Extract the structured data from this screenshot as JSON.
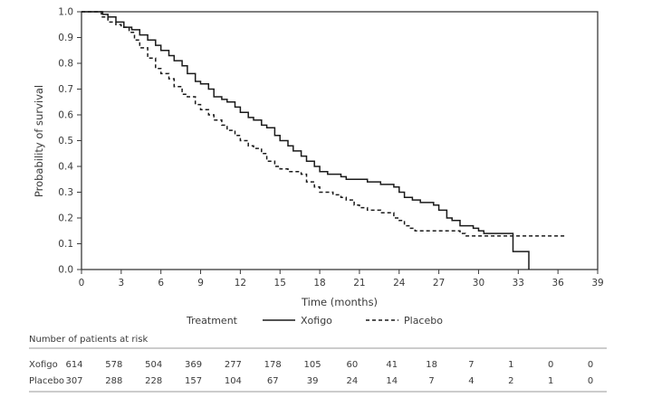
{
  "chart_data": {
    "type": "line",
    "subtype": "kaplan-meier",
    "title": "",
    "xlabel": "Time (months)",
    "ylabel": "Probability of survival",
    "xlim": [
      0,
      39
    ],
    "ylim": [
      0,
      1.0
    ],
    "x_ticks": [
      0,
      3,
      6,
      9,
      12,
      15,
      18,
      21,
      24,
      27,
      30,
      33,
      36,
      39
    ],
    "y_ticks": [
      "0.0",
      "0.1",
      "0.2",
      "0.3",
      "0.4",
      "0.5",
      "0.6",
      "0.7",
      "0.8",
      "0.9",
      "1.0"
    ],
    "legend_title": "Treatment",
    "series": [
      {
        "name": "Xofigo",
        "style": "solid",
        "color": "#1a1a1a",
        "points": [
          [
            0,
            1.0
          ],
          [
            1.2,
            1.0
          ],
          [
            1.6,
            0.99
          ],
          [
            2.0,
            0.98
          ],
          [
            2.6,
            0.96
          ],
          [
            3.2,
            0.94
          ],
          [
            3.8,
            0.93
          ],
          [
            4.4,
            0.91
          ],
          [
            5.0,
            0.89
          ],
          [
            5.6,
            0.87
          ],
          [
            6.0,
            0.85
          ],
          [
            6.6,
            0.83
          ],
          [
            7.0,
            0.81
          ],
          [
            7.6,
            0.79
          ],
          [
            8.0,
            0.76
          ],
          [
            8.6,
            0.73
          ],
          [
            9.0,
            0.72
          ],
          [
            9.6,
            0.7
          ],
          [
            10.0,
            0.67
          ],
          [
            10.6,
            0.66
          ],
          [
            11.0,
            0.65
          ],
          [
            11.6,
            0.63
          ],
          [
            12.0,
            0.61
          ],
          [
            12.6,
            0.59
          ],
          [
            13.0,
            0.58
          ],
          [
            13.6,
            0.56
          ],
          [
            14.0,
            0.55
          ],
          [
            14.6,
            0.52
          ],
          [
            15.0,
            0.5
          ],
          [
            15.6,
            0.48
          ],
          [
            16.0,
            0.46
          ],
          [
            16.6,
            0.44
          ],
          [
            17.0,
            0.42
          ],
          [
            17.6,
            0.4
          ],
          [
            18.0,
            0.38
          ],
          [
            18.6,
            0.37
          ],
          [
            19.0,
            0.37
          ],
          [
            19.6,
            0.36
          ],
          [
            20.0,
            0.35
          ],
          [
            21.0,
            0.35
          ],
          [
            21.6,
            0.34
          ],
          [
            22.0,
            0.34
          ],
          [
            22.6,
            0.33
          ],
          [
            23.0,
            0.33
          ],
          [
            23.6,
            0.32
          ],
          [
            24.0,
            0.3
          ],
          [
            24.4,
            0.28
          ],
          [
            25.0,
            0.27
          ],
          [
            25.6,
            0.26
          ],
          [
            26.0,
            0.26
          ],
          [
            26.6,
            0.25
          ],
          [
            27.0,
            0.23
          ],
          [
            27.6,
            0.2
          ],
          [
            28.0,
            0.19
          ],
          [
            28.6,
            0.17
          ],
          [
            29.0,
            0.17
          ],
          [
            29.6,
            0.16
          ],
          [
            30.0,
            0.15
          ],
          [
            30.4,
            0.14
          ],
          [
            31.0,
            0.14
          ],
          [
            32.0,
            0.14
          ],
          [
            32.6,
            0.14
          ],
          [
            32.6,
            0.07
          ],
          [
            33.4,
            0.07
          ],
          [
            33.8,
            0.0
          ]
        ]
      },
      {
        "name": "Placebo",
        "style": "dashed",
        "color": "#1a1a1a",
        "points": [
          [
            0,
            1.0
          ],
          [
            1.0,
            1.0
          ],
          [
            1.5,
            0.98
          ],
          [
            2.0,
            0.96
          ],
          [
            2.6,
            0.95
          ],
          [
            3.0,
            0.94
          ],
          [
            3.6,
            0.92
          ],
          [
            4.0,
            0.89
          ],
          [
            4.4,
            0.86
          ],
          [
            5.0,
            0.82
          ],
          [
            5.6,
            0.78
          ],
          [
            6.0,
            0.76
          ],
          [
            6.6,
            0.74
          ],
          [
            7.0,
            0.71
          ],
          [
            7.6,
            0.68
          ],
          [
            8.0,
            0.67
          ],
          [
            8.6,
            0.64
          ],
          [
            9.0,
            0.62
          ],
          [
            9.6,
            0.6
          ],
          [
            10.0,
            0.58
          ],
          [
            10.6,
            0.56
          ],
          [
            11.0,
            0.54
          ],
          [
            11.6,
            0.52
          ],
          [
            12.0,
            0.5
          ],
          [
            12.6,
            0.48
          ],
          [
            13.0,
            0.47
          ],
          [
            13.6,
            0.45
          ],
          [
            14.0,
            0.42
          ],
          [
            14.6,
            0.4
          ],
          [
            15.0,
            0.39
          ],
          [
            15.6,
            0.38
          ],
          [
            16.0,
            0.38
          ],
          [
            16.6,
            0.37
          ],
          [
            17.0,
            0.34
          ],
          [
            17.6,
            0.32
          ],
          [
            18.0,
            0.3
          ],
          [
            18.6,
            0.3
          ],
          [
            19.0,
            0.29
          ],
          [
            19.6,
            0.28
          ],
          [
            20.0,
            0.27
          ],
          [
            20.6,
            0.25
          ],
          [
            21.0,
            0.24
          ],
          [
            21.6,
            0.23
          ],
          [
            22.0,
            0.23
          ],
          [
            22.6,
            0.22
          ],
          [
            23.0,
            0.22
          ],
          [
            23.6,
            0.2
          ],
          [
            24.0,
            0.19
          ],
          [
            24.4,
            0.17
          ],
          [
            24.8,
            0.16
          ],
          [
            25.2,
            0.15
          ],
          [
            26.0,
            0.15
          ],
          [
            27.0,
            0.15
          ],
          [
            28.0,
            0.15
          ],
          [
            28.6,
            0.14
          ],
          [
            29.0,
            0.13
          ],
          [
            30.0,
            0.13
          ],
          [
            31.0,
            0.13
          ],
          [
            33.0,
            0.13
          ],
          [
            34.0,
            0.13
          ],
          [
            35.0,
            0.13
          ],
          [
            36.5,
            0.13
          ]
        ]
      }
    ]
  },
  "risk_table": {
    "title": "Number of patients at risk",
    "rows": [
      {
        "label": "Xofigo",
        "values": [
          "614",
          "578",
          "504",
          "369",
          "277",
          "178",
          "105",
          "60",
          "41",
          "18",
          "7",
          "1",
          "0",
          "0"
        ]
      },
      {
        "label": "Placebo",
        "values": [
          "307",
          "288",
          "228",
          "157",
          "104",
          "67",
          "39",
          "24",
          "14",
          "7",
          "4",
          "2",
          "1",
          "0"
        ]
      }
    ]
  }
}
